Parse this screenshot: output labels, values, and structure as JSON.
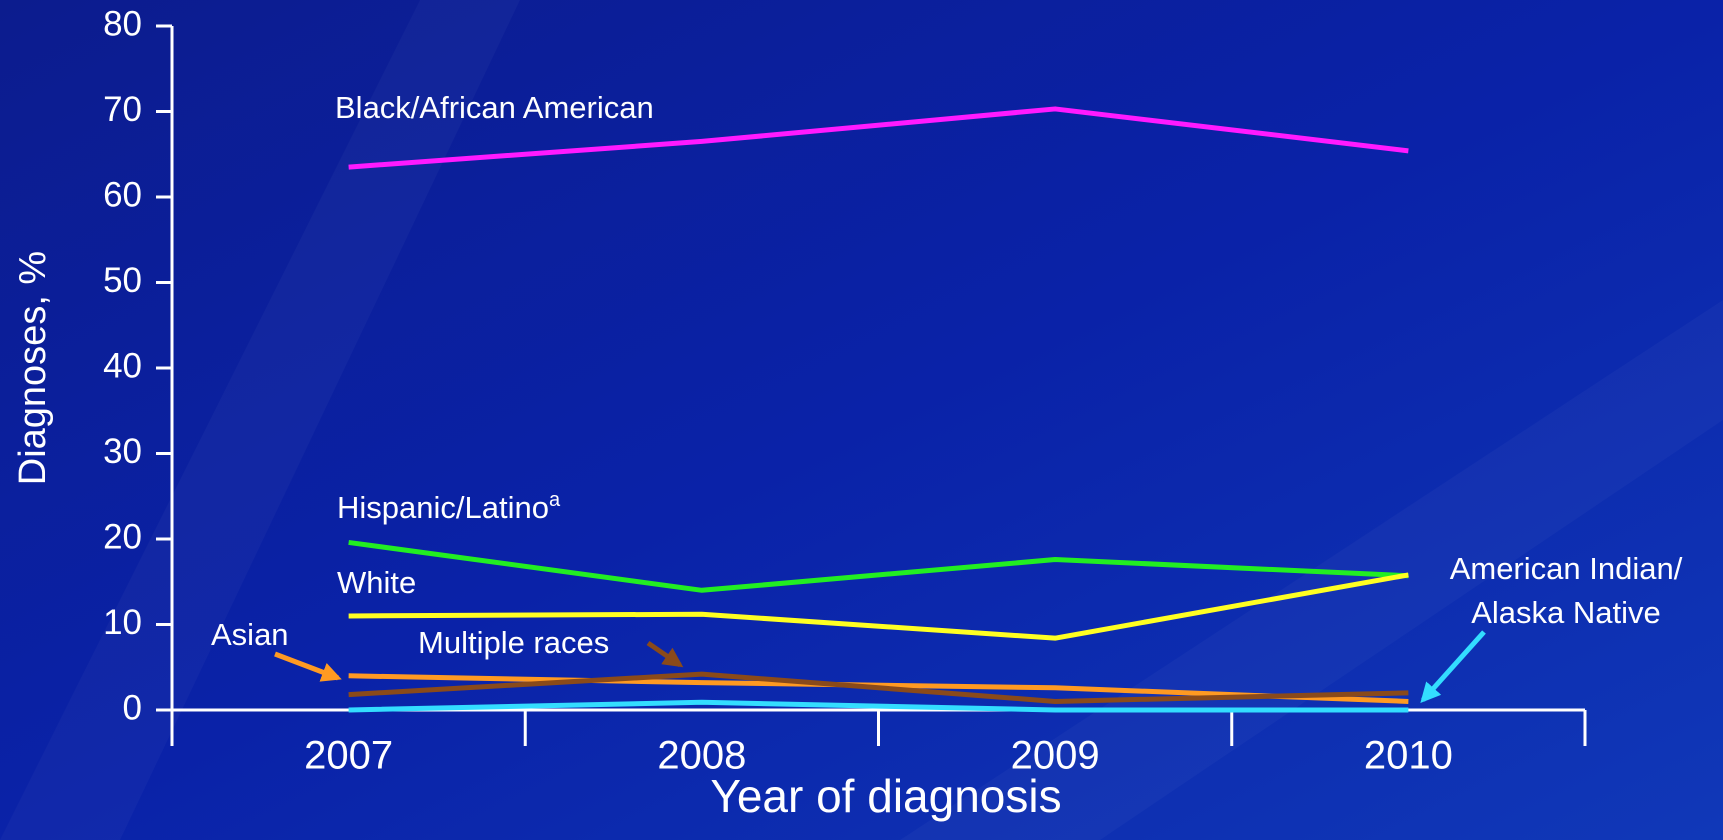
{
  "chart_data": {
    "type": "line",
    "x_axis_label": "Year of diagnosis",
    "y_axis_label": "Diagnoses, %",
    "categories": [
      "2007",
      "2008",
      "2009",
      "2010"
    ],
    "ylim": [
      0,
      80
    ],
    "yticks": [
      0,
      10,
      20,
      30,
      40,
      50,
      60,
      70,
      80
    ],
    "series": [
      {
        "name": "Black/African American",
        "color": "#ff1aff",
        "values": [
          63.5,
          66.5,
          70.3,
          65.4
        ]
      },
      {
        "name": "Hispanic/Latino",
        "name_superscript": "a",
        "color": "#22ee22",
        "values": [
          19.6,
          14.0,
          17.6,
          15.7
        ]
      },
      {
        "name": "White",
        "color": "#ffff22",
        "values": [
          11.0,
          11.2,
          8.4,
          15.8
        ]
      },
      {
        "name": "Asian",
        "color": "#ff9a22",
        "values": [
          4.0,
          3.2,
          2.6,
          1.0
        ]
      },
      {
        "name": "Multiple races",
        "color": "#8a4a1a",
        "values": [
          1.8,
          4.2,
          1.0,
          2.0
        ]
      },
      {
        "name": "American Indian/Alaska Native",
        "color": "#33ddff",
        "values": [
          0,
          0.9,
          0,
          0
        ]
      }
    ]
  }
}
